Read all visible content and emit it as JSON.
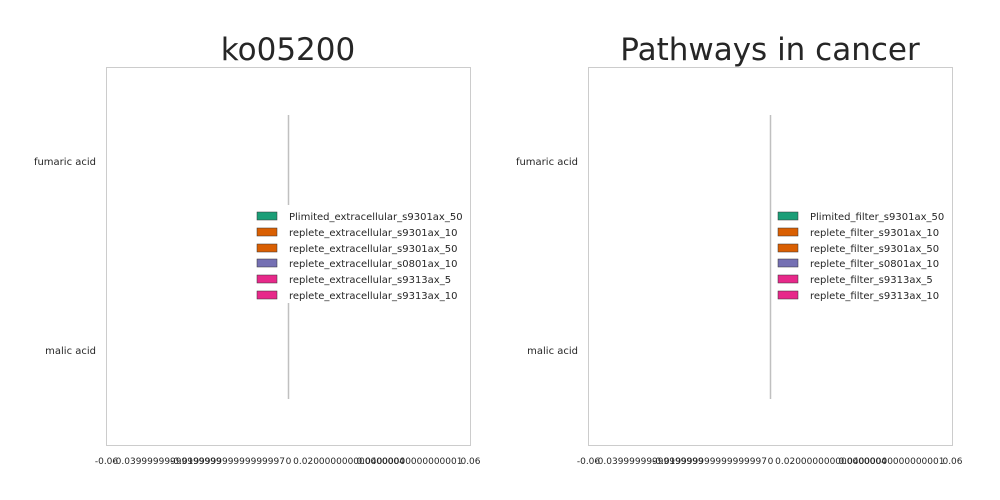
{
  "chart_data": [
    {
      "type": "bar",
      "orientation": "horizontal",
      "title": "ko05200",
      "categories": [
        "fumaric acid",
        "malic acid"
      ],
      "x_tick_labels": [
        "-0.06",
        "-0.03999999999999999",
        "-0.019999999999999997",
        "0",
        "0.020000000000000004",
        "0.04000000000000001",
        "0.06"
      ],
      "x_ticks": [
        -0.06,
        -0.04,
        -0.02,
        0,
        0.02,
        0.04,
        0.06
      ],
      "xlim": [
        -0.06,
        0.06
      ],
      "grid": false,
      "legend_position": "center-right",
      "series": [
        {
          "name": "Plimited_extracellular_s9301ax_50",
          "color": "#1b9e77",
          "values": [
            0,
            0
          ]
        },
        {
          "name": "replete_extracellular_s9301ax_10",
          "color": "#d95f02",
          "values": [
            0,
            0
          ]
        },
        {
          "name": "replete_extracellular_s9301ax_50",
          "color": "#d95f02",
          "values": [
            0,
            0
          ]
        },
        {
          "name": "replete_extracellular_s0801ax_10",
          "color": "#7570b3",
          "values": [
            0,
            0
          ]
        },
        {
          "name": "replete_extracellular_s9313ax_5",
          "color": "#e7298a",
          "values": [
            0,
            0
          ]
        },
        {
          "name": "replete_extracellular_s9313ax_10",
          "color": "#e7298a",
          "values": [
            0,
            0
          ]
        }
      ]
    },
    {
      "type": "bar",
      "orientation": "horizontal",
      "title": "Pathways in cancer",
      "categories": [
        "fumaric acid",
        "malic acid"
      ],
      "x_tick_labels": [
        "-0.06",
        "-0.03999999999999999",
        "-0.019999999999999997",
        "0",
        "0.020000000000000004",
        "0.04000000000000001",
        "0.06"
      ],
      "x_ticks": [
        -0.06,
        -0.04,
        -0.02,
        0,
        0.02,
        0.04,
        0.06
      ],
      "xlim": [
        -0.06,
        0.06
      ],
      "grid": false,
      "legend_position": "center-right",
      "series": [
        {
          "name": "Plimited_filter_s9301ax_50",
          "color": "#1b9e77",
          "values": [
            0,
            0
          ]
        },
        {
          "name": "replete_filter_s9301ax_10",
          "color": "#d95f02",
          "values": [
            0,
            0
          ]
        },
        {
          "name": "replete_filter_s9301ax_50",
          "color": "#d95f02",
          "values": [
            0,
            0
          ]
        },
        {
          "name": "replete_filter_s0801ax_10",
          "color": "#7570b3",
          "values": [
            0,
            0
          ]
        },
        {
          "name": "replete_filter_s9313ax_5",
          "color": "#e7298a",
          "values": [
            0,
            0
          ]
        },
        {
          "name": "replete_filter_s9313ax_10",
          "color": "#e7298a",
          "values": [
            0,
            0
          ]
        }
      ]
    }
  ]
}
